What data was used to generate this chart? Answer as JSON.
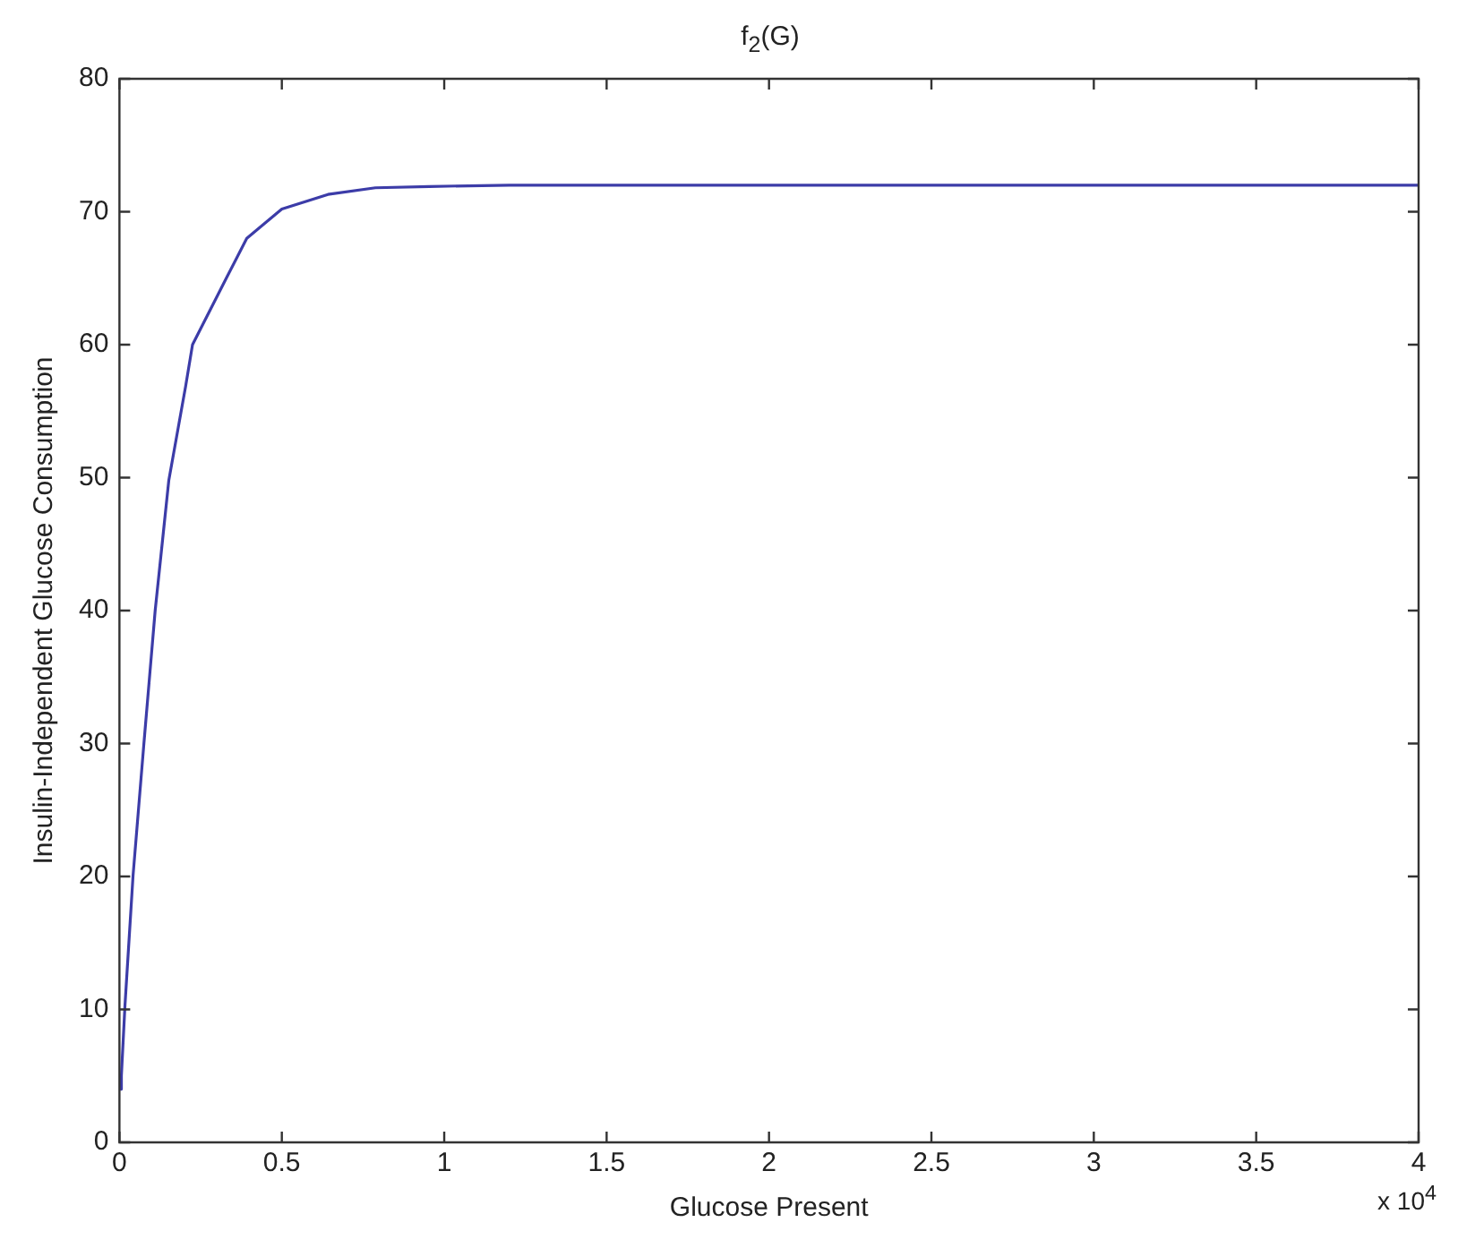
{
  "chart_data": {
    "type": "line",
    "title": "f$_{2}$(G)",
    "xlabel": "Glucose Present",
    "ylabel": "Insulin-Independent Glucose Consumption",
    "annotations": [
      "x 10$^{4}$"
    ],
    "x": [
      0.002,
      0.006,
      0.017,
      0.042,
      0.075,
      0.11,
      0.152,
      0.204,
      0.225,
      0.329,
      0.392,
      0.5,
      0.642,
      0.788,
      0.954,
      1.2,
      1.6,
      2,
      2.5,
      3,
      3.5,
      4
    ],
    "series": [
      {
        "color": "#3c3ca8",
        "values": [
          4,
          5,
          10.3,
          20.1,
          29.9,
          40,
          49.8,
          56.9,
          60,
          65,
          68,
          70.2,
          71.3,
          71.8,
          71.9,
          72,
          72,
          72,
          72,
          72,
          72,
          72
        ]
      }
    ],
    "xlim": [
      0,
      4
    ],
    "xticks": [
      0,
      0.5,
      1,
      1.5,
      2,
      2.5,
      3,
      3.5,
      4
    ],
    "ylim": [
      0,
      80
    ],
    "yticks": [
      0,
      10,
      20,
      30,
      40,
      50,
      60,
      70,
      80
    ],
    "grid": false,
    "legend": false,
    "marker": "none",
    "line_style": "solid"
  }
}
